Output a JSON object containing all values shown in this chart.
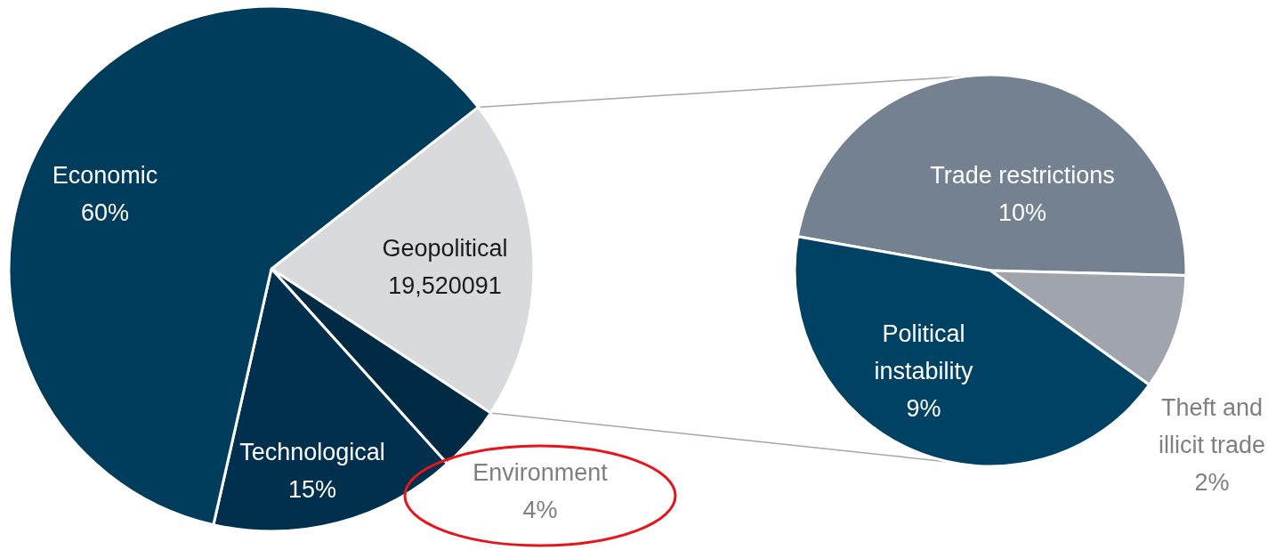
{
  "chart_data": [
    {
      "type": "pie",
      "categories": [
        "Geopolitical",
        "Environment",
        "Technological",
        "Economic"
      ],
      "values": [
        19.520091,
        4,
        15,
        60
      ],
      "value_labels": [
        "19,520091",
        "4%",
        "15%",
        "60%"
      ],
      "colors": [
        "#d9dadd",
        "#012b45",
        "#01304f",
        "#003c5c"
      ]
    },
    {
      "type": "pie",
      "categories": [
        "Trade restrictions",
        "Theft and illicit trade",
        "Political instability"
      ],
      "values": [
        10,
        2,
        9
      ],
      "value_labels": [
        "10%",
        "2%",
        "9%"
      ],
      "colors": [
        "#738191",
        "#a0a5ad",
        "#004264"
      ]
    }
  ]
}
